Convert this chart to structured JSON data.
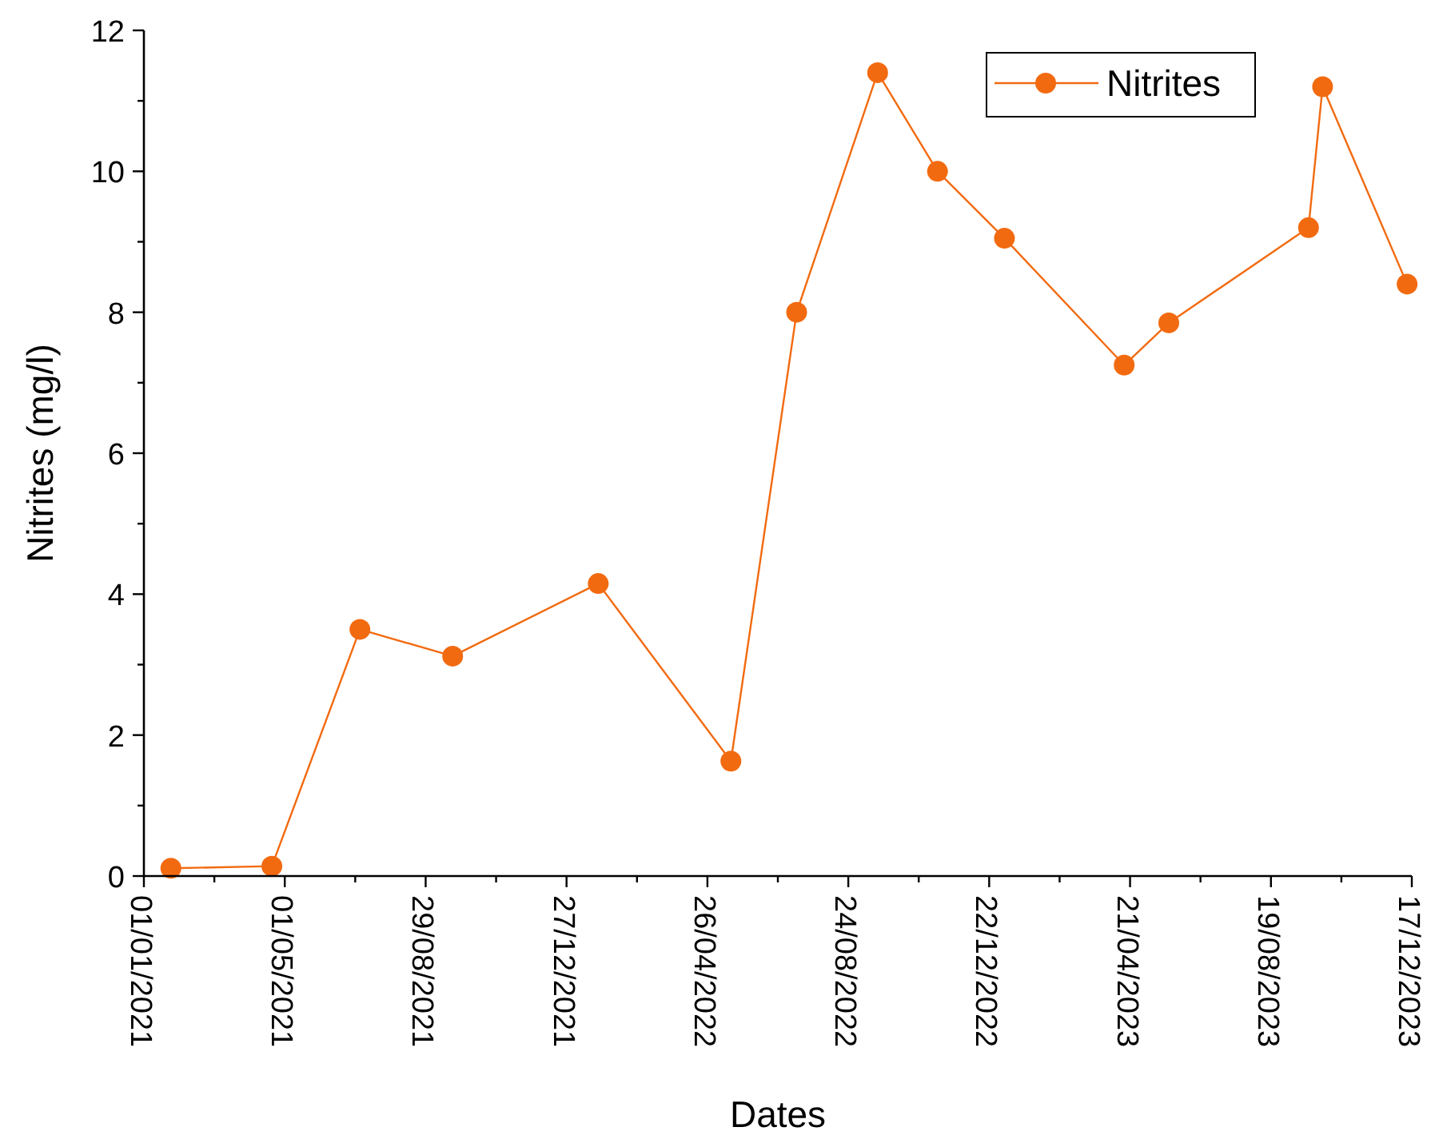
{
  "chart_data": {
    "type": "line",
    "xlabel": "Dates",
    "ylabel": "Nitrites (mg/l)",
    "x": [
      "2021-01-24",
      "2021-04-20",
      "2021-07-04",
      "2021-09-21",
      "2022-01-23",
      "2022-05-16",
      "2022-07-11",
      "2022-09-18",
      "2022-11-08",
      "2023-01-04",
      "2023-04-16",
      "2023-05-24",
      "2023-09-20",
      "2023-10-02",
      "2023-12-13"
    ],
    "series": [
      {
        "name": "Nitrites",
        "color": "#f26a10",
        "values": [
          0.11,
          0.14,
          3.5,
          3.12,
          4.15,
          1.63,
          8.0,
          11.4,
          10.0,
          9.05,
          7.25,
          7.85,
          9.2,
          11.2,
          8.4
        ]
      }
    ],
    "xlim": [
      "2021-01-01",
      "2023-12-17"
    ],
    "xticks": [
      {
        "value": "2021-01-01",
        "label": "01/01/2021"
      },
      {
        "value": "2021-03-02",
        "label": null
      },
      {
        "value": "2021-05-01",
        "label": "01/05/2021"
      },
      {
        "value": "2021-06-30",
        "label": null
      },
      {
        "value": "2021-08-29",
        "label": "29/08/2021"
      },
      {
        "value": "2021-10-28",
        "label": null
      },
      {
        "value": "2021-12-27",
        "label": "27/12/2021"
      },
      {
        "value": "2022-02-25",
        "label": null
      },
      {
        "value": "2022-04-26",
        "label": "26/04/2022"
      },
      {
        "value": "2022-06-25",
        "label": null
      },
      {
        "value": "2022-08-24",
        "label": "24/08/2022"
      },
      {
        "value": "2022-10-23",
        "label": null
      },
      {
        "value": "2022-12-22",
        "label": "22/12/2022"
      },
      {
        "value": "2023-02-20",
        "label": null
      },
      {
        "value": "2023-04-21",
        "label": "21/04/2023"
      },
      {
        "value": "2023-06-20",
        "label": null
      },
      {
        "value": "2023-08-19",
        "label": "19/08/2023"
      },
      {
        "value": "2023-10-18",
        "label": null
      },
      {
        "value": "2023-12-17",
        "label": "17/12/2023"
      }
    ],
    "ylim": [
      0,
      12
    ],
    "yticks": [
      0,
      {
        "value": 1,
        "label": null
      },
      2,
      {
        "value": 3,
        "label": null
      },
      4,
      {
        "value": 5,
        "label": null
      },
      6,
      {
        "value": 7,
        "label": null
      },
      8,
      {
        "value": 9,
        "label": null
      },
      10,
      {
        "value": 11,
        "label": null
      },
      12
    ],
    "marker": "circle",
    "line_style": "solid",
    "grid": false,
    "legend": "top right"
  }
}
